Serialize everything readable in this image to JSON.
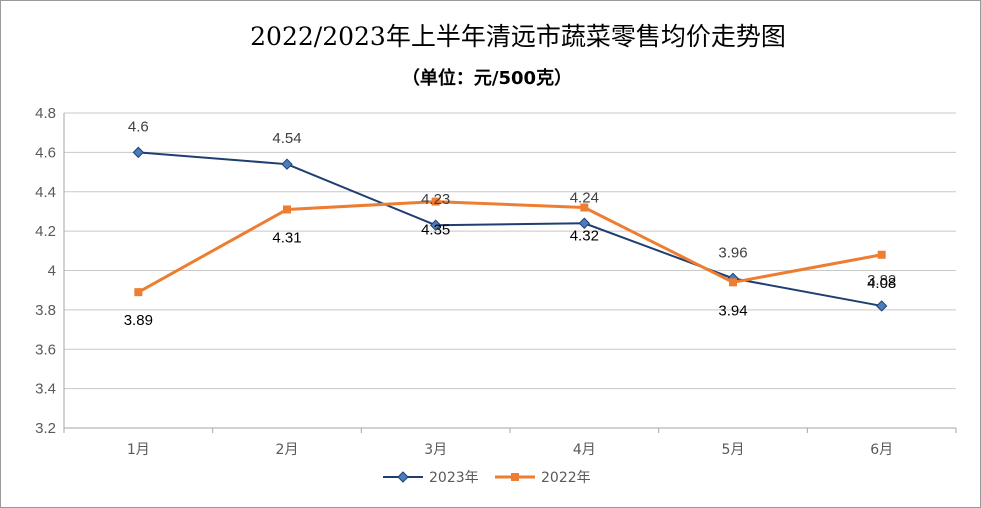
{
  "chart_data": {
    "type": "line",
    "title": "2022/2023年上半年清远市蔬菜零售均价走势图",
    "subtitle": "（单位：元/500克）",
    "categories": [
      "1月",
      "2月",
      "3月",
      "4月",
      "5月",
      "6月"
    ],
    "ylim": [
      3.2,
      4.8
    ],
    "yticks": [
      "4.8",
      "4.6",
      "4.4",
      "4.2",
      "4",
      "3.8",
      "3.6",
      "3.4",
      "3.2"
    ],
    "grid": true,
    "legend_position": "bottom",
    "series": [
      {
        "name": "2023年",
        "color": "#1f3f73",
        "marker": "diamond",
        "values": [
          4.6,
          4.54,
          4.23,
          4.24,
          3.96,
          3.82
        ],
        "labels": [
          "4.6",
          "4.54",
          "4.23",
          "4.24",
          "3.96",
          "3.82"
        ]
      },
      {
        "name": "2022年",
        "color": "#ed7d31",
        "marker": "square",
        "values": [
          3.89,
          4.31,
          4.35,
          4.32,
          3.94,
          4.08
        ],
        "labels": [
          "3.89",
          "4.31",
          "4.35",
          "4.32",
          "3.94",
          "4.08"
        ]
      }
    ]
  }
}
